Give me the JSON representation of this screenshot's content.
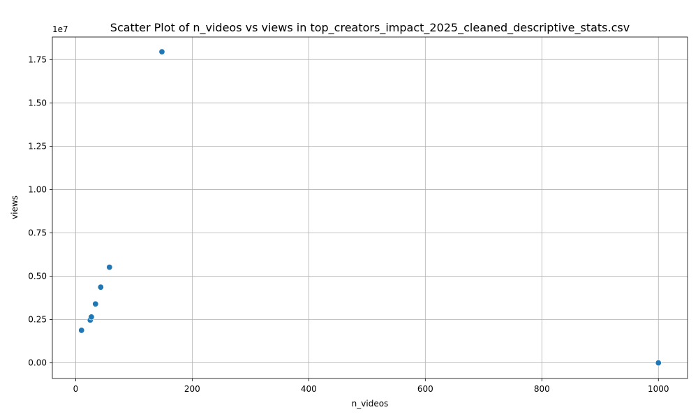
{
  "chart_data": {
    "type": "scatter",
    "title": "Scatter Plot of n_videos vs views in top_creators_impact_2025_cleaned_descriptive_stats.csv",
    "xlabel": "n_videos",
    "ylabel": "views",
    "y_offset_label": "1e7",
    "xlim": [
      -40,
      1050
    ],
    "ylim": [
      -900000,
      18800000
    ],
    "x_ticks": [
      0,
      200,
      400,
      600,
      800,
      1000
    ],
    "x_tick_labels": [
      "0",
      "200",
      "400",
      "600",
      "800",
      "1000"
    ],
    "y_ticks": [
      0,
      2500000,
      5000000,
      7500000,
      10000000,
      12500000,
      15000000,
      17500000
    ],
    "y_tick_labels": [
      "0.00",
      "0.25",
      "0.50",
      "0.75",
      "1.00",
      "1.25",
      "1.50",
      "1.75"
    ],
    "grid": true,
    "point_color": "#1f77b4",
    "series": [
      {
        "points": [
          {
            "x": 10,
            "y": 1880000
          },
          {
            "x": 25,
            "y": 2470000
          },
          {
            "x": 27,
            "y": 2650000
          },
          {
            "x": 34,
            "y": 3400000
          },
          {
            "x": 43,
            "y": 4370000
          },
          {
            "x": 58,
            "y": 5520000
          },
          {
            "x": 148,
            "y": 17950000
          },
          {
            "x": 1000,
            "y": 0
          }
        ]
      }
    ]
  }
}
